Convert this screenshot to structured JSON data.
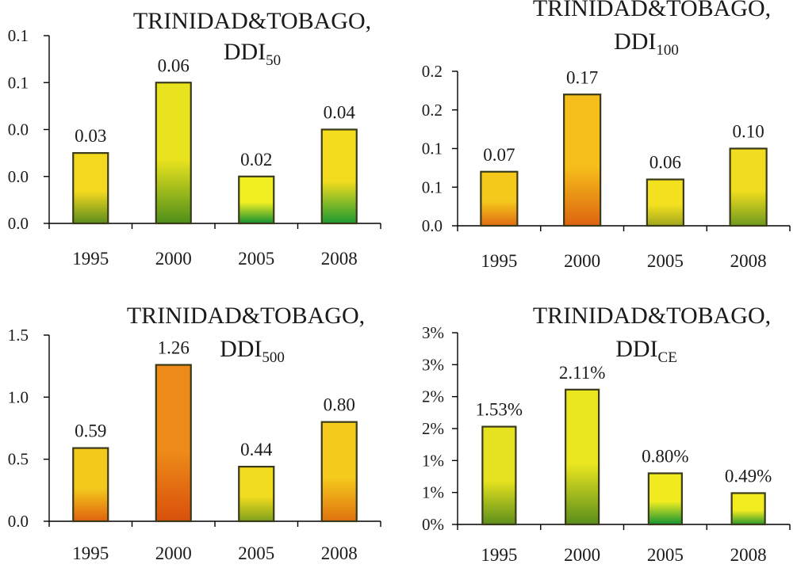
{
  "chart_data": [
    {
      "type": "bar",
      "title_line1": "TRINIDAD&TOBAGO,",
      "title_main": "DDI",
      "title_sub": "50",
      "categories": [
        "1995",
        "2000",
        "2005",
        "2008"
      ],
      "values": [
        0.03,
        0.06,
        0.02,
        0.04
      ],
      "value_labels": [
        "0.03",
        "0.06",
        "0.02",
        "0.04"
      ],
      "ylim": [
        0,
        0.08
      ],
      "y_ticks": [
        0,
        0.02,
        0.04,
        0.06,
        0.08
      ],
      "y_tick_labels": [
        "0.0",
        "0.0",
        "0.0",
        "0.1",
        "0.1"
      ],
      "bar_colors": [
        [
          "#f2d81f",
          "#5c8d1e"
        ],
        [
          "#e9e21e",
          "#4e8f1a"
        ],
        [
          "#f1ef22",
          "#138f32"
        ],
        [
          "#f3dc1e",
          "#1c9a30"
        ]
      ]
    },
    {
      "type": "bar",
      "title_line1": "TRINIDAD&TOBAGO,",
      "title_main": "DDI",
      "title_sub": "100",
      "categories": [
        "1995",
        "2000",
        "2005",
        "2008"
      ],
      "values": [
        0.07,
        0.17,
        0.06,
        0.1
      ],
      "value_labels": [
        "0.07",
        "0.17",
        "0.06",
        "0.10"
      ],
      "ylim": [
        0,
        0.2
      ],
      "y_ticks": [
        0,
        0.05,
        0.1,
        0.15,
        0.2
      ],
      "y_tick_labels": [
        "0.0",
        "0.1",
        "0.1",
        "0.2",
        "0.2"
      ],
      "bar_colors": [
        [
          "#f5c81c",
          "#e06a12"
        ],
        [
          "#f6be1a",
          "#dd6411"
        ],
        [
          "#f3e01f",
          "#9fa61e"
        ],
        [
          "#f0dd1f",
          "#6f9a1e"
        ]
      ]
    },
    {
      "type": "bar",
      "title_line1": "TRINIDAD&TOBAGO,",
      "title_main": "DDI",
      "title_sub": "500",
      "categories": [
        "1995",
        "2000",
        "2005",
        "2008"
      ],
      "values": [
        0.59,
        1.26,
        0.44,
        0.8
      ],
      "value_labels": [
        "0.59",
        "1.26",
        "0.44",
        "0.80"
      ],
      "ylim": [
        0,
        1.5
      ],
      "y_ticks": [
        0,
        0.5,
        1.0,
        1.5
      ],
      "y_tick_labels": [
        "0.0",
        "0.5",
        "1.0",
        "1.5"
      ],
      "bar_colors": [
        [
          "#f3c91c",
          "#e0620f"
        ],
        [
          "#ee8b18",
          "#d8500b"
        ],
        [
          "#f2dc1f",
          "#7fa01c"
        ],
        [
          "#f5cc1d",
          "#e0720f"
        ]
      ]
    },
    {
      "type": "bar",
      "title_line1": "TRINIDAD&TOBAGO,",
      "title_main": "DDI",
      "title_sub": "CE",
      "categories": [
        "1995",
        "2000",
        "2005",
        "2008"
      ],
      "values": [
        1.53,
        2.11,
        0.8,
        0.49
      ],
      "value_labels": [
        "1.53%",
        "2.11%",
        "0.80%",
        "0.49%"
      ],
      "ylim": [
        0,
        3
      ],
      "y_ticks": [
        0,
        0.5,
        1.0,
        1.5,
        2.0,
        2.5,
        3.0
      ],
      "y_tick_labels": [
        "0%",
        "1%",
        "1%",
        "2%",
        "2%",
        "3%",
        "3%"
      ],
      "bar_colors": [
        [
          "#e7e21f",
          "#5d8f1c"
        ],
        [
          "#eae61f",
          "#5a8d1c"
        ],
        [
          "#f0ec20",
          "#129433"
        ],
        [
          "#f3ec20",
          "#2a9a2c"
        ]
      ]
    }
  ]
}
